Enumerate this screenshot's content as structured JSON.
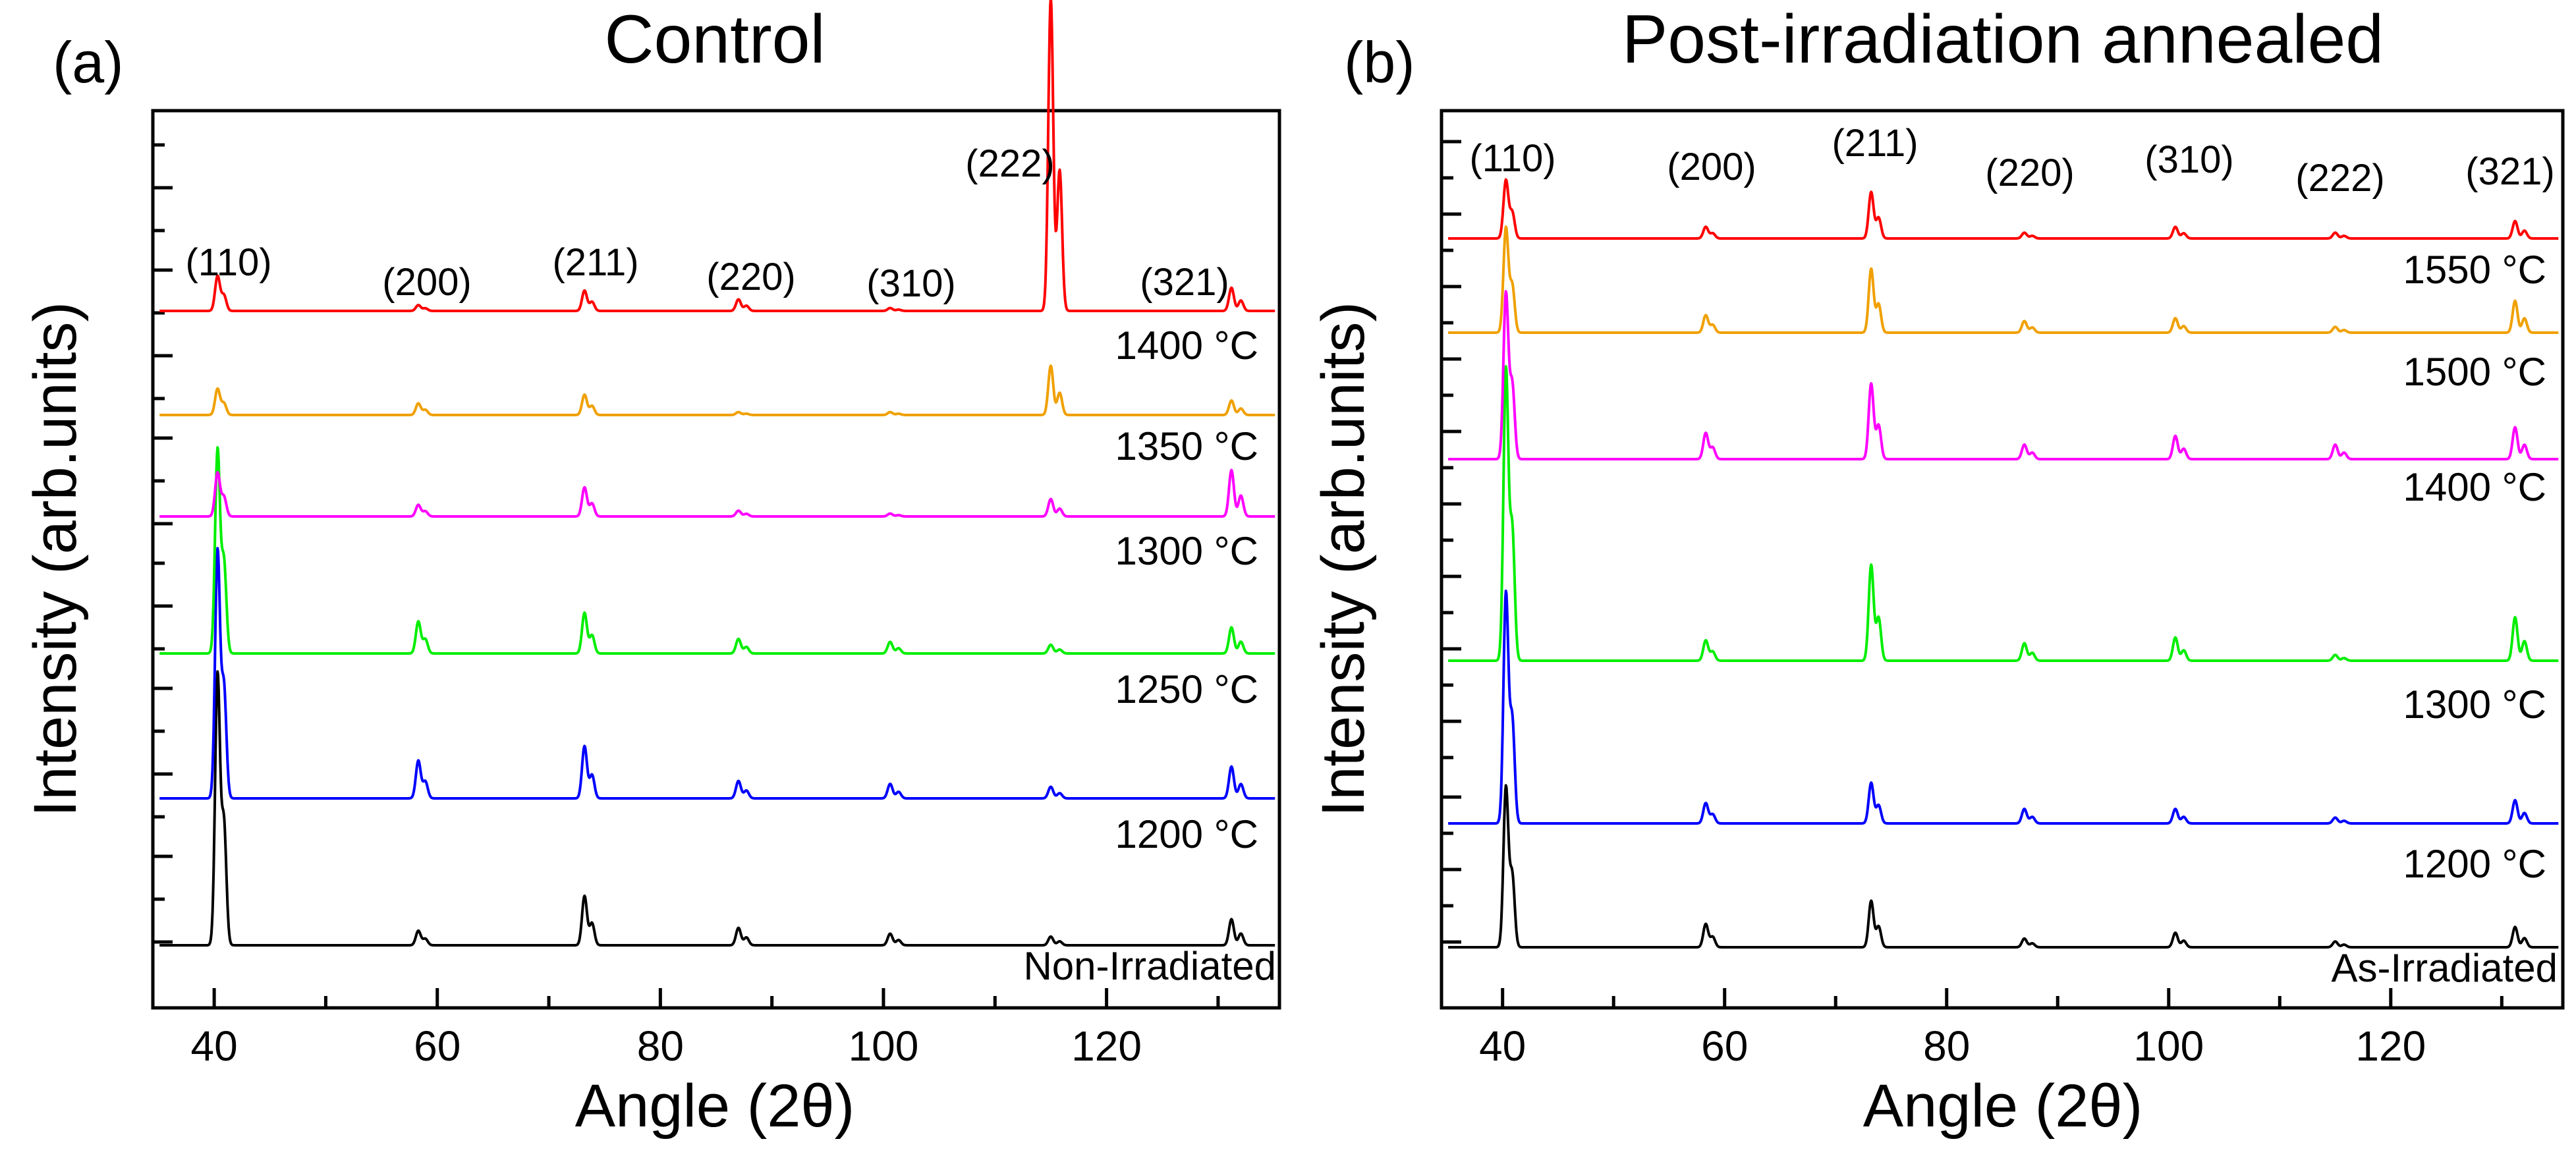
{
  "chart_data": [
    {
      "type": "line",
      "panel_label": "(a)",
      "title": "Control",
      "xlabel": "Angle (2θ)",
      "ylabel": "Intensity (arb.units)",
      "xlim": [
        34.5,
        135.5
      ],
      "xticks": [
        "40",
        "60",
        "80",
        "100",
        "120"
      ],
      "yticks_labeled": false,
      "stacked": true,
      "peaks": [
        {
          "label": "(110)",
          "x": 40.3
        },
        {
          "label": "(200)",
          "x": 58.3
        },
        {
          "label": "(211)",
          "x": 73.2
        },
        {
          "label": "(220)",
          "x": 87.0
        },
        {
          "label": "(310)",
          "x": 100.6
        },
        {
          "label": "(222)",
          "x": 115.0
        },
        {
          "label": "(321)",
          "x": 131.2
        }
      ],
      "series": [
        {
          "name": "Non-Irradiated",
          "color": "#000000",
          "intensities": [
            0.93,
            0.05,
            0.17,
            0.06,
            0.04,
            0.03,
            0.09
          ]
        },
        {
          "name": "1200 °C",
          "color": "#0000ff",
          "intensities": [
            0.85,
            0.13,
            0.18,
            0.06,
            0.05,
            0.04,
            0.11
          ]
        },
        {
          "name": "1250 °C",
          "color": "#00ee00",
          "intensities": [
            0.7,
            0.11,
            0.14,
            0.05,
            0.04,
            0.03,
            0.09
          ]
        },
        {
          "name": "1300 °C",
          "color": "#ff00ff",
          "intensities": [
            0.15,
            0.04,
            0.1,
            0.02,
            0.01,
            0.06,
            0.16
          ]
        },
        {
          "name": "1350 °C",
          "color": "#f0a000",
          "intensities": [
            0.09,
            0.04,
            0.07,
            0.01,
            0.01,
            0.17,
            0.05
          ]
        },
        {
          "name": "1400 °C",
          "color": "#ff0000",
          "intensities": [
            0.12,
            0.02,
            0.07,
            0.04,
            0.01,
            1.08,
            0.08
          ]
        }
      ]
    },
    {
      "type": "line",
      "panel_label": "(b)",
      "title": "Post-irradiation annealed",
      "xlabel": "Angle (2θ)",
      "ylabel": "Intensity (arb.units)",
      "xlim": [
        34.5,
        135.5
      ],
      "xticks": [
        "40",
        "60",
        "80",
        "100",
        "120"
      ],
      "yticks_labeled": false,
      "stacked": true,
      "peaks": [
        {
          "label": "(110)",
          "x": 40.3
        },
        {
          "label": "(200)",
          "x": 58.3
        },
        {
          "label": "(211)",
          "x": 73.2
        },
        {
          "label": "(220)",
          "x": 87.0
        },
        {
          "label": "(310)",
          "x": 100.6
        },
        {
          "label": "(222)",
          "x": 115.0
        },
        {
          "label": "(321)",
          "x": 131.2
        }
      ],
      "series": [
        {
          "name": "As-Irradiated",
          "color": "#000000",
          "intensities": [
            0.55,
            0.08,
            0.16,
            0.03,
            0.05,
            0.02,
            0.07
          ]
        },
        {
          "name": "1200 °C",
          "color": "#0000ff",
          "intensities": [
            0.79,
            0.07,
            0.14,
            0.05,
            0.05,
            0.02,
            0.08
          ]
        },
        {
          "name": "1300 °C",
          "color": "#00ee00",
          "intensities": [
            1.0,
            0.07,
            0.33,
            0.06,
            0.08,
            0.02,
            0.15
          ]
        },
        {
          "name": "1400 °C",
          "color": "#ff00ff",
          "intensities": [
            0.57,
            0.09,
            0.26,
            0.05,
            0.08,
            0.05,
            0.11
          ]
        },
        {
          "name": "1500 °C",
          "color": "#f0a000",
          "intensities": [
            0.36,
            0.06,
            0.22,
            0.04,
            0.05,
            0.02,
            0.11
          ]
        },
        {
          "name": "1550 °C",
          "color": "#ff0000",
          "intensities": [
            0.2,
            0.04,
            0.16,
            0.02,
            0.04,
            0.02,
            0.06
          ]
        }
      ]
    }
  ]
}
